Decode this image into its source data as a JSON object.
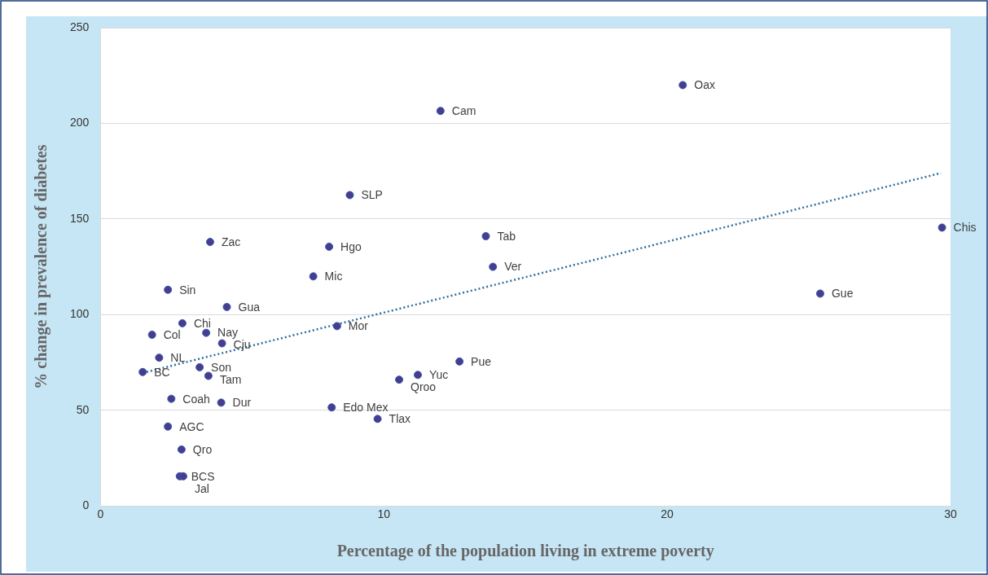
{
  "chart_data": {
    "type": "scatter",
    "xlabel": "Percentage of the population living in extreme poverty",
    "ylabel": "% change in prevalence of diabetes",
    "xlim": [
      0,
      30
    ],
    "xticks": [
      0,
      10,
      20,
      30
    ],
    "ylim": [
      0,
      250
    ],
    "yticks": [
      0,
      50,
      100,
      150,
      200,
      250
    ],
    "grid": "y",
    "legend": false,
    "marker": "circle",
    "series": [
      {
        "color": "#4b3a90",
        "x": [
          20.55,
          12.0,
          8.8,
          29.7,
          13.6,
          3.87,
          8.07,
          13.85,
          7.51,
          2.38,
          25.4,
          4.46,
          8.35,
          2.89,
          1.82,
          3.73,
          4.29,
          2.07,
          12.67,
          1.49,
          3.5,
          11.2,
          3.81,
          10.54,
          2.5,
          4.26,
          8.16,
          9.78,
          2.38,
          2.86,
          2.8,
          2.92
        ],
        "values": [
          220,
          206.5,
          162.5,
          145.5,
          141,
          138,
          135.5,
          125,
          120,
          113,
          111,
          104,
          94,
          95.5,
          89.5,
          90.5,
          85,
          77.5,
          75.5,
          70,
          72.5,
          68.5,
          68,
          66,
          56,
          54,
          51.5,
          45.5,
          41.5,
          29.5,
          15.5,
          15.5
        ]
      },
      {
        "type": "line",
        "color": "#2e6e9e",
        "line_style": "dotted",
        "marker": "none",
        "x": [
          1.49,
          29.66
        ],
        "values": [
          69.5,
          174
        ]
      }
    ],
    "annotations": [
      {
        "text": "Oax",
        "x": 20.55,
        "y": 220
      },
      {
        "text": "Cam",
        "x": 12.0,
        "y": 206.5
      },
      {
        "text": "SLP",
        "x": 8.8,
        "y": 162.5
      },
      {
        "text": "Chis",
        "x": 29.7,
        "y": 145.5
      },
      {
        "text": "Tab",
        "x": 13.6,
        "y": 141
      },
      {
        "text": "Zac",
        "x": 3.87,
        "y": 138
      },
      {
        "text": "Hgo",
        "x": 8.07,
        "y": 135.5
      },
      {
        "text": "Ver",
        "x": 13.85,
        "y": 125
      },
      {
        "text": "Mic",
        "x": 7.51,
        "y": 120
      },
      {
        "text": "Sin",
        "x": 2.38,
        "y": 113
      },
      {
        "text": "Gue",
        "x": 25.4,
        "y": 111
      },
      {
        "text": "Gua",
        "x": 4.46,
        "y": 104
      },
      {
        "text": "Mor",
        "x": 8.35,
        "y": 94
      },
      {
        "text": "Chi",
        "x": 2.89,
        "y": 95.5
      },
      {
        "text": "Col",
        "x": 1.82,
        "y": 89.5
      },
      {
        "text": "Nay",
        "x": 3.73,
        "y": 90.5
      },
      {
        "text": "Cju",
        "x": 4.29,
        "y": 85
      },
      {
        "text": "NL",
        "x": 2.07,
        "y": 77.5
      },
      {
        "text": "Pue",
        "x": 12.67,
        "y": 75.5
      },
      {
        "text": "BC",
        "x": 1.49,
        "y": 70
      },
      {
        "text": "Son",
        "x": 3.5,
        "y": 72.5
      },
      {
        "text": "Yuc",
        "x": 11.2,
        "y": 68.5
      },
      {
        "text": "Tam",
        "x": 3.81,
        "y": 68
      },
      {
        "text": "Qroo",
        "x": 10.54,
        "y": 66
      },
      {
        "text": "Coah",
        "x": 2.5,
        "y": 56
      },
      {
        "text": "Dur",
        "x": 4.26,
        "y": 54
      },
      {
        "text": "Edo Mex",
        "x": 8.16,
        "y": 51.5
      },
      {
        "text": "Tlax",
        "x": 9.78,
        "y": 45.5
      },
      {
        "text": "AGC",
        "x": 2.38,
        "y": 41.5
      },
      {
        "text": "Qro",
        "x": 2.86,
        "y": 29.5
      },
      {
        "text": "BCS",
        "x": 2.8,
        "y": 15.5
      },
      {
        "text": "Jal",
        "x": 2.92,
        "y": 15.5
      }
    ]
  }
}
